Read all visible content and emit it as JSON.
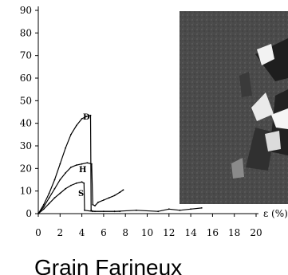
{
  "chart_data": {
    "type": "line",
    "title": "",
    "xlabel": "ε (%)",
    "ylabel": "",
    "xlim": [
      0,
      20
    ],
    "ylim": [
      0,
      90
    ],
    "x_ticks": [
      "0",
      "2",
      "4",
      "6",
      "8",
      "10",
      "12",
      "14",
      "16",
      "18",
      "20"
    ],
    "y_ticks": [
      "0",
      "10",
      "20",
      "30",
      "40",
      "50",
      "60",
      "70",
      "80",
      "90"
    ],
    "grid": false,
    "series": [
      {
        "name": "D",
        "color": "#000000",
        "x": [
          0,
          0.5,
          1.0,
          1.5,
          2.0,
          2.5,
          3.0,
          3.5,
          4.0,
          4.4,
          4.8,
          4.85,
          4.9,
          5.2,
          6.0,
          7.0,
          7.5
        ],
        "y": [
          0,
          4,
          9,
          15,
          22,
          29,
          35,
          39,
          42,
          43,
          43.5,
          1.5,
          1.2,
          1.0,
          1.0,
          1.0,
          1.0
        ]
      },
      {
        "name": "H",
        "color": "#000000",
        "x": [
          0,
          0.5,
          1.0,
          1.5,
          2.0,
          2.5,
          3.0,
          3.5,
          4.0,
          4.5,
          4.9,
          5.0,
          5.2,
          5.5,
          6.0,
          6.5,
          7.0,
          7.5,
          7.8
        ],
        "y": [
          0,
          3,
          7,
          11,
          15,
          18,
          20.5,
          21.5,
          22,
          22.5,
          22,
          4,
          3.5,
          5,
          6,
          7,
          8,
          9.5,
          10.5
        ]
      },
      {
        "name": "S",
        "color": "#000000",
        "x": [
          0,
          0.5,
          1.0,
          1.5,
          2.0,
          2.5,
          3.0,
          3.5,
          4.0,
          4.2,
          4.25,
          5,
          7,
          9,
          11,
          12,
          13,
          14,
          15
        ],
        "y": [
          0,
          2,
          4.5,
          7,
          9,
          11,
          12.5,
          13.5,
          14,
          13.5,
          1.5,
          1.0,
          1.0,
          1.5,
          1.0,
          2.0,
          1.5,
          2.0,
          2.5
        ]
      }
    ],
    "annotations": [
      "D",
      "H",
      "S"
    ]
  },
  "caption": "Grain Farineux"
}
